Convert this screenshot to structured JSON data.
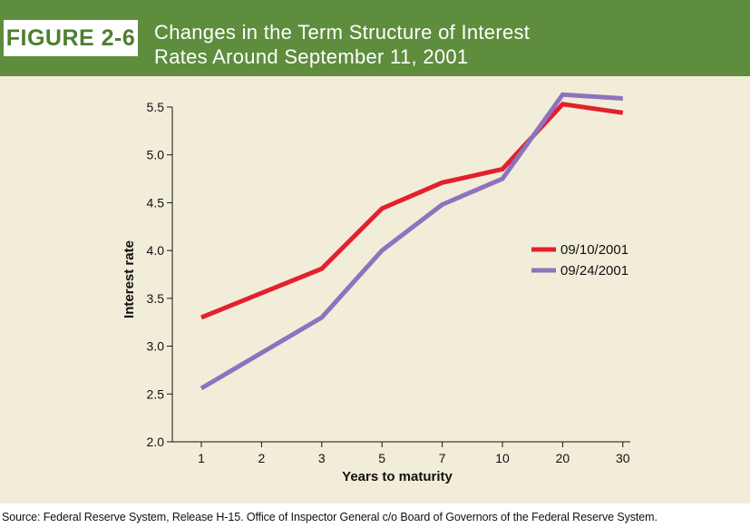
{
  "figure": {
    "label": "FIGURE 2-6",
    "title_line1": "Changes in the Term Structure of Interest",
    "title_line2": "Rates Around September 11, 2001"
  },
  "source": "Source: Federal Reserve System, Release H-15. Office of Inspector General c/o Board of Governors of the Federal Reserve System.",
  "colors": {
    "header": "#5e8d3d",
    "panel": "#f2edd9",
    "series1": "#e3202e",
    "series2": "#8d73bf"
  },
  "chart_data": {
    "type": "line",
    "categories": [
      "1",
      "2",
      "3",
      "5",
      "7",
      "10",
      "20",
      "30"
    ],
    "xlabel": "Years to maturity",
    "ylabel": "Interest rate",
    "ylim": [
      2.0,
      5.5
    ],
    "yticks": [
      "2.0",
      "2.5",
      "3.0",
      "3.5",
      "4.0",
      "4.5",
      "5.0",
      "5.5"
    ],
    "grid": false,
    "legend_position": "right",
    "series": [
      {
        "name": "09/10/2001",
        "color": "#e3202e",
        "values": [
          3.3,
          null,
          3.81,
          4.44,
          4.71,
          4.85,
          5.53,
          5.44
        ]
      },
      {
        "name": "09/24/2001",
        "color": "#8d73bf",
        "values": [
          2.56,
          null,
          3.3,
          4.0,
          4.48,
          4.75,
          5.63,
          5.59
        ]
      }
    ]
  }
}
